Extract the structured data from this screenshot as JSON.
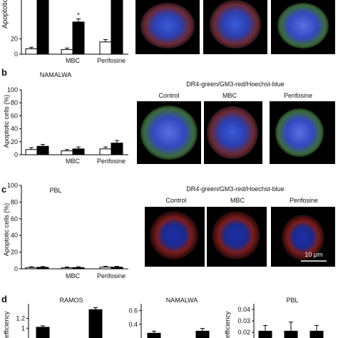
{
  "colors": {
    "bar_control": "#ffffff",
    "bar_treated": "#000000",
    "axis": "#000000"
  },
  "microscopy_caption": "DR4-green/GM3-red/Hoechst-blue",
  "image_labels": [
    "Control",
    "MBC",
    "Perifosine"
  ],
  "scale_bar_label": "10 μm",
  "panels": {
    "a": {
      "ylabel": "Apoptotic ce"
    },
    "b": {
      "letter": "b",
      "title": "NAMALWA",
      "ylabel": "Apoptotic cells (%)"
    },
    "c": {
      "letter": "c",
      "title": "PBL",
      "ylabel": "Apoptotic cells (%)"
    },
    "d": {
      "letter": "d",
      "ylabel": "efficiency"
    }
  },
  "chart_data": [
    {
      "id": "a",
      "type": "bar",
      "title": "",
      "ylabel": "Apoptotic ce",
      "categories": [
        "",
        "MBC",
        "Perifosine"
      ],
      "yticks": [
        "0",
        "20"
      ],
      "ylim": [
        0,
        80
      ],
      "series": [
        {
          "values": [
            7,
            6,
            16
          ],
          "errors": [
            2,
            2,
            3
          ]
        },
        {
          "values": [
            80,
            42,
            80
          ],
          "errors": [
            0,
            4,
            0
          ]
        }
      ],
      "annotations": [
        {
          "text": "*",
          "category": "MBC",
          "series": 1
        }
      ]
    },
    {
      "id": "b",
      "type": "bar",
      "title": "NAMALWA",
      "ylabel": "Apoptotic cells (%)",
      "categories": [
        "",
        "MBC",
        "Perifosine"
      ],
      "yticks": [
        "0",
        "20",
        "40",
        "60",
        "80",
        "100"
      ],
      "ylim": [
        0,
        100
      ],
      "series": [
        {
          "values": [
            8,
            6,
            9
          ],
          "errors": [
            3,
            2,
            3
          ]
        },
        {
          "values": [
            13,
            9,
            18
          ],
          "errors": [
            3,
            3,
            4
          ]
        }
      ]
    },
    {
      "id": "c",
      "type": "bar",
      "title": "PBL",
      "ylabel": "Apoptotic cells (%)",
      "categories": [
        "",
        "MBC",
        "Perifosine"
      ],
      "yticks": [
        "0",
        "20",
        "40",
        "60",
        "80",
        "100"
      ],
      "ylim": [
        0,
        100
      ],
      "series": [
        {
          "values": [
            1.5,
            1.2,
            2
          ],
          "errors": [
            1,
            1,
            1
          ]
        },
        {
          "values": [
            1.8,
            1.5,
            2
          ],
          "errors": [
            1,
            1,
            1
          ]
        }
      ]
    },
    {
      "id": "d1",
      "type": "bar",
      "title": "RAMOS",
      "ylabel": "efficiency",
      "categories": [
        "",
        ""
      ],
      "yticks": [
        "1",
        "1.2"
      ],
      "ylim": [
        0.8,
        1.5
      ],
      "series": [
        {
          "values": [
            1.02,
            1.38
          ],
          "errors": [
            0.03,
            0.04
          ]
        }
      ]
    },
    {
      "id": "d2",
      "type": "bar",
      "title": "NAMALWA",
      "ylabel": "",
      "categories": [
        "",
        ""
      ],
      "yticks": [
        "0.4",
        "0.6"
      ],
      "ylim": [
        0.2,
        0.7
      ],
      "series": [
        {
          "values": [
            0.27,
            0.3
          ],
          "errors": [
            0.03,
            0.04
          ]
        }
      ]
    },
    {
      "id": "d3",
      "type": "bar",
      "title": "PBL",
      "ylabel": "efficiency",
      "categories": [
        "",
        "",
        ""
      ],
      "yticks": [
        "0.02",
        "0.03",
        "0.04"
      ],
      "ylim": [
        0.015,
        0.045
      ],
      "series": [
        {
          "values": [
            0.021,
            0.021,
            0.021
          ],
          "errors": [
            0.005,
            0.008,
            0.005
          ]
        }
      ]
    }
  ]
}
